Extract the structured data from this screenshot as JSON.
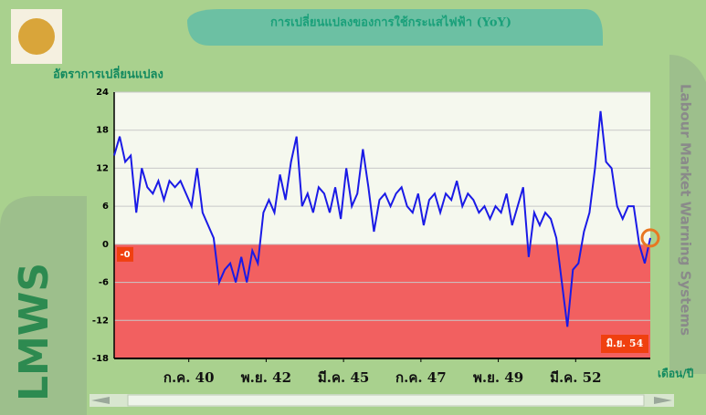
{
  "chart_data": {
    "type": "line",
    "title": "การเปลี่ยนแปลงของการใช้กระแสไฟฟ้า (YoY)",
    "y_label": "อัตราการเปลี่ยนแปลง",
    "x_label": "เดือน/ปี",
    "side_title": "Labour Market Warning Systems",
    "brand": "LMWS",
    "zero_label": "-0",
    "last_label": "มิ.ย. 54",
    "color": "#1a1ae6",
    "x": [
      0,
      2,
      4,
      6,
      8,
      10,
      12,
      14,
      16,
      18,
      20,
      22,
      24,
      26,
      28,
      30,
      32,
      34,
      36,
      38,
      40,
      42,
      44,
      46,
      48,
      50,
      52,
      54,
      56,
      58,
      60,
      62,
      64,
      66,
      68,
      70,
      72,
      74,
      76,
      78,
      80,
      82,
      84,
      86,
      88,
      90,
      92,
      94,
      96,
      98,
      100,
      102,
      104,
      106,
      108,
      110,
      112,
      114,
      116,
      118,
      120,
      122,
      124,
      126,
      128,
      130,
      132,
      134,
      136,
      138,
      140,
      142,
      144,
      146,
      148,
      150,
      152,
      154,
      156,
      158,
      160,
      162,
      164,
      166,
      168,
      170,
      172,
      174,
      176,
      178,
      180,
      182,
      184,
      186,
      188,
      190,
      192,
      194
    ],
    "values": [
      14,
      17,
      13,
      14,
      5,
      12,
      9,
      8,
      10,
      7,
      10,
      9,
      10,
      8,
      6,
      12,
      5,
      3,
      1,
      -6,
      -4,
      -3,
      -6,
      -2,
      -6,
      -1,
      -3,
      5,
      7,
      5,
      11,
      7,
      13,
      17,
      6,
      8,
      5,
      9,
      8,
      5,
      9,
      4,
      12,
      6,
      8,
      15,
      9,
      2,
      7,
      8,
      6,
      8,
      9,
      6,
      5,
      8,
      3,
      7,
      8,
      5,
      8,
      7,
      10,
      6,
      8,
      7,
      5,
      6,
      4,
      6,
      5,
      8,
      3,
      6,
      9,
      -2,
      5,
      3,
      5,
      4,
      1,
      -6,
      -13,
      -4,
      -3,
      2,
      5,
      12,
      21,
      13,
      12,
      6,
      4,
      6,
      6,
      0,
      -3,
      1
    ],
    "xlim": [
      0,
      194
    ],
    "xticks": [
      {
        "value": 27,
        "label": "ก.ค. 40"
      },
      {
        "value": 55,
        "label": "พ.ย. 42"
      },
      {
        "value": 83,
        "label": "มี.ค. 45"
      },
      {
        "value": 111,
        "label": "ก.ค. 47"
      },
      {
        "value": 139,
        "label": "พ.ย. 49"
      },
      {
        "value": 167,
        "label": "มี.ค. 52"
      }
    ],
    "ylim": [
      -18,
      24
    ],
    "yticks": [
      -18,
      -12,
      -6,
      0,
      6,
      12,
      18,
      24
    ],
    "grid": true
  }
}
